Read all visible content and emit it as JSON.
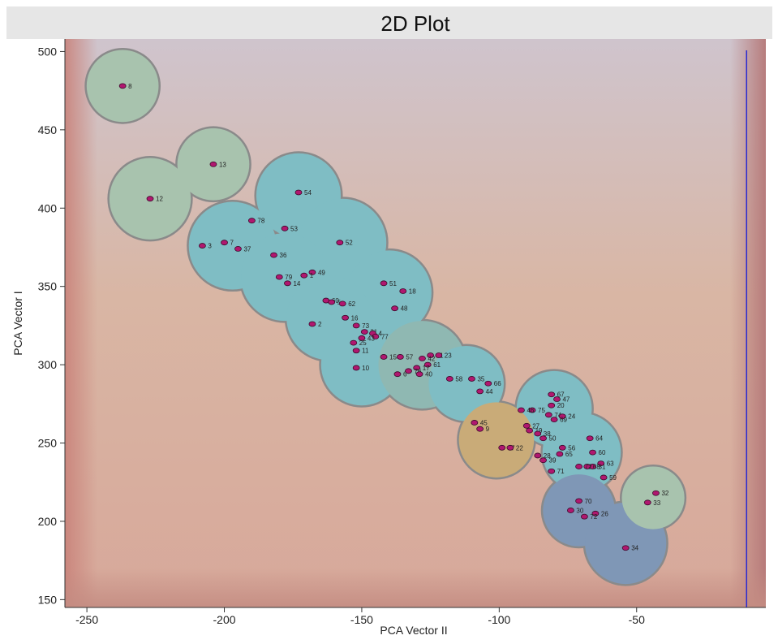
{
  "chart_data": {
    "type": "scatter",
    "title": "2D  Plot",
    "xlabel": "PCA Vector II",
    "ylabel": "PCA Vector I",
    "xlim": [
      -258,
      -3
    ],
    "ylim": [
      145,
      508
    ],
    "x_ticks": [
      {
        "value": -250,
        "label": "-250"
      },
      {
        "value": -200,
        "label": "-200"
      },
      {
        "value": -150,
        "label": "-150"
      },
      {
        "value": -100,
        "label": "-100"
      },
      {
        "value": -50,
        "label": "-50"
      }
    ],
    "y_ticks": [
      {
        "value": 150,
        "label": "150"
      },
      {
        "value": 200,
        "label": "200"
      },
      {
        "value": 250,
        "label": "250"
      },
      {
        "value": 300,
        "label": "300"
      },
      {
        "value": 350,
        "label": "350"
      },
      {
        "value": 400,
        "label": "400"
      },
      {
        "value": 450,
        "label": "450"
      },
      {
        "value": 500,
        "label": "500"
      }
    ],
    "grid": false,
    "vertical_line_x": -10,
    "colors": {
      "point": "#b0176f",
      "point_edge": "#3b0a2a",
      "vline": "#2a2ad0",
      "cluster_edge": "#8a8a8a",
      "cluster_teal": "#7fbdc4",
      "cluster_green": "#a8c3ae",
      "cluster_orange": "#c9ab78",
      "cluster_blue": "#7f97b6"
    },
    "points": [
      {
        "label": "8",
        "x": -237,
        "y": 478
      },
      {
        "label": "13",
        "x": -204,
        "y": 428
      },
      {
        "label": "12",
        "x": -227,
        "y": 406
      },
      {
        "label": "54",
        "x": -173,
        "y": 410
      },
      {
        "label": "78",
        "x": -190,
        "y": 392
      },
      {
        "label": "53",
        "x": -178,
        "y": 387
      },
      {
        "label": "52",
        "x": -158,
        "y": 378
      },
      {
        "label": "3",
        "x": -208,
        "y": 376
      },
      {
        "label": "7",
        "x": -200,
        "y": 378
      },
      {
        "label": "37",
        "x": -195,
        "y": 374
      },
      {
        "label": "36",
        "x": -182,
        "y": 370
      },
      {
        "label": "49",
        "x": -168,
        "y": 359
      },
      {
        "label": "1",
        "x": -171,
        "y": 357
      },
      {
        "label": "79",
        "x": -180,
        "y": 356
      },
      {
        "label": "14",
        "x": -177,
        "y": 352
      },
      {
        "label": "51",
        "x": -142,
        "y": 352
      },
      {
        "label": "18",
        "x": -135,
        "y": 347
      },
      {
        "label": "60",
        "x": -163,
        "y": 341
      },
      {
        "label": "5",
        "x": -161,
        "y": 340
      },
      {
        "label": "62",
        "x": -157,
        "y": 339
      },
      {
        "label": "48",
        "x": -138,
        "y": 336
      },
      {
        "label": "16",
        "x": -156,
        "y": 330
      },
      {
        "label": "2",
        "x": -168,
        "y": 326
      },
      {
        "label": "73",
        "x": -152,
        "y": 325
      },
      {
        "label": "21",
        "x": -149,
        "y": 321
      },
      {
        "label": "4",
        "x": -146,
        "y": 320
      },
      {
        "label": "77",
        "x": -145,
        "y": 318
      },
      {
        "label": "43",
        "x": -150,
        "y": 317
      },
      {
        "label": "25",
        "x": -153,
        "y": 314
      },
      {
        "label": "11",
        "x": -152,
        "y": 309
      },
      {
        "label": "15",
        "x": -142,
        "y": 305
      },
      {
        "label": "57",
        "x": -136,
        "y": 305
      },
      {
        "label": "41",
        "x": -125,
        "y": 306
      },
      {
        "label": "23",
        "x": -122,
        "y": 306
      },
      {
        "label": "42",
        "x": -128,
        "y": 304
      },
      {
        "label": "61",
        "x": -126,
        "y": 300
      },
      {
        "label": "17",
        "x": -130,
        "y": 298
      },
      {
        "label": "10",
        "x": -152,
        "y": 298
      },
      {
        "label": "76",
        "x": -133,
        "y": 296
      },
      {
        "label": "6",
        "x": -137,
        "y": 294
      },
      {
        "label": "40",
        "x": -129,
        "y": 294
      },
      {
        "label": "58",
        "x": -118,
        "y": 291
      },
      {
        "label": "35",
        "x": -110,
        "y": 291
      },
      {
        "label": "66",
        "x": -104,
        "y": 288
      },
      {
        "label": "44",
        "x": -107,
        "y": 283
      },
      {
        "label": "67",
        "x": -81,
        "y": 281
      },
      {
        "label": "47",
        "x": -79,
        "y": 278
      },
      {
        "label": "20",
        "x": -81,
        "y": 274
      },
      {
        "label": "75",
        "x": -88,
        "y": 271
      },
      {
        "label": "46",
        "x": -92,
        "y": 271
      },
      {
        "label": "74",
        "x": -82,
        "y": 268
      },
      {
        "label": "24",
        "x": -77,
        "y": 267
      },
      {
        "label": "69",
        "x": -80,
        "y": 265
      },
      {
        "label": "45",
        "x": -109,
        "y": 263
      },
      {
        "label": "27",
        "x": -90,
        "y": 261
      },
      {
        "label": "9",
        "x": -107,
        "y": 259
      },
      {
        "label": "19",
        "x": -89,
        "y": 258
      },
      {
        "label": "38",
        "x": -86,
        "y": 256
      },
      {
        "label": "50",
        "x": -84,
        "y": 253
      },
      {
        "label": "64",
        "x": -67,
        "y": 253
      },
      {
        "label": "56",
        "x": -77,
        "y": 247
      },
      {
        "label": "57",
        "x": -99,
        "y": 247
      },
      {
        "label": "22",
        "x": -96,
        "y": 247
      },
      {
        "label": "60",
        "x": -66,
        "y": 244
      },
      {
        "label": "28",
        "x": -86,
        "y": 242
      },
      {
        "label": "65",
        "x": -78,
        "y": 243
      },
      {
        "label": "39",
        "x": -84,
        "y": 239
      },
      {
        "label": "63",
        "x": -63,
        "y": 237
      },
      {
        "label": "31",
        "x": -66,
        "y": 235
      },
      {
        "label": "68",
        "x": -68,
        "y": 235
      },
      {
        "label": "72",
        "x": -71,
        "y": 235
      },
      {
        "label": "71",
        "x": -81,
        "y": 232
      },
      {
        "label": "59",
        "x": -62,
        "y": 228
      },
      {
        "label": "32",
        "x": -43,
        "y": 218
      },
      {
        "label": "33",
        "x": -46,
        "y": 212
      },
      {
        "label": "70",
        "x": -71,
        "y": 213
      },
      {
        "label": "30",
        "x": -74,
        "y": 207
      },
      {
        "label": "26",
        "x": -65,
        "y": 205
      },
      {
        "label": "72",
        "x": -69,
        "y": 203
      },
      {
        "label": "34",
        "x": -54,
        "y": 183
      }
    ],
    "clusters": [
      {
        "cx": -237,
        "cy": 478,
        "r": 23,
        "color": "#a8c3ae",
        "edge": true
      },
      {
        "cx": -204,
        "cy": 428,
        "r": 23,
        "color": "#a8c3ae",
        "edge": true
      },
      {
        "cx": -227,
        "cy": 406,
        "r": 26,
        "color": "#a8c3ae",
        "edge": true
      },
      {
        "cx": -173,
        "cy": 408,
        "r": 27,
        "color": "#7fbdc4",
        "edge": true
      },
      {
        "cx": -157,
        "cy": 378,
        "r": 28,
        "color": "#7fbdc4",
        "edge": true
      },
      {
        "cx": -197,
        "cy": 376,
        "r": 28,
        "color": "#7fbdc4",
        "edge": true
      },
      {
        "cx": -178,
        "cy": 356,
        "r": 28,
        "color": "#7fbdc4",
        "edge": true
      },
      {
        "cx": -140,
        "cy": 346,
        "r": 27,
        "color": "#7fbdc4",
        "edge": true
      },
      {
        "cx": -162,
        "cy": 330,
        "r": 27,
        "color": "#7fbdc4",
        "edge": true
      },
      {
        "cx": -150,
        "cy": 300,
        "r": 26,
        "color": "#7fbdc4",
        "edge": true
      },
      {
        "cx": -128,
        "cy": 300,
        "r": 28,
        "color": "#8fb8b2",
        "edge": true
      },
      {
        "cx": -112,
        "cy": 288,
        "r": 24,
        "color": "#7fbdc4",
        "edge": true
      },
      {
        "cx": -80,
        "cy": 272,
        "r": 24,
        "color": "#7fbdc4",
        "edge": true
      },
      {
        "cx": -101,
        "cy": 252,
        "r": 24,
        "color": "#c9ab78",
        "edge": true
      },
      {
        "cx": -70,
        "cy": 244,
        "r": 25,
        "color": "#7fbdc4",
        "edge": true
      },
      {
        "cx": -71,
        "cy": 207,
        "r": 23,
        "color": "#7f97b6",
        "edge": true
      },
      {
        "cx": -54,
        "cy": 186,
        "r": 26,
        "color": "#7f97b6",
        "edge": true
      },
      {
        "cx": -44,
        "cy": 215,
        "r": 20,
        "color": "#a8c3ae",
        "edge": true
      }
    ]
  }
}
